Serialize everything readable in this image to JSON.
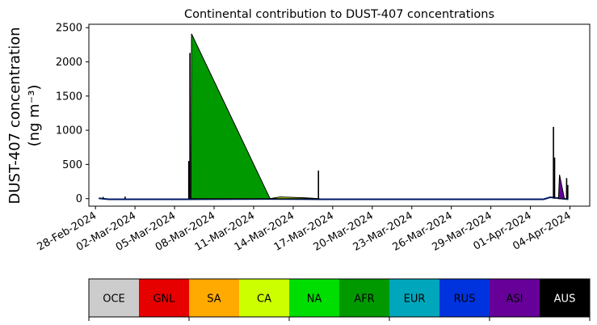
{
  "chart_data": {
    "type": "area",
    "title": "Continental contribution to DUST-407 concentrations",
    "ylabel_line1": "DUST-407 concentration",
    "ylabel_line2": "(ng m⁻³)",
    "xlabel": "",
    "ylim": [
      -110,
      2550
    ],
    "xlim": [
      "2024-02-27T12:00",
      "2024-04-05T12:00"
    ],
    "grid": false,
    "y_ticks": [
      0,
      500,
      1000,
      1500,
      2000,
      2500
    ],
    "x_ticks": [
      {
        "date": "2024-02-28",
        "label": "28-Feb-2024"
      },
      {
        "date": "2024-03-02",
        "label": "02-Mar-2024"
      },
      {
        "date": "2024-03-05",
        "label": "05-Mar-2024"
      },
      {
        "date": "2024-03-08",
        "label": "08-Mar-2024"
      },
      {
        "date": "2024-03-11",
        "label": "11-Mar-2024"
      },
      {
        "date": "2024-03-14",
        "label": "14-Mar-2024"
      },
      {
        "date": "2024-03-17",
        "label": "17-Mar-2024"
      },
      {
        "date": "2024-03-20",
        "label": "20-Mar-2024"
      },
      {
        "date": "2024-03-23",
        "label": "23-Mar-2024"
      },
      {
        "date": "2024-03-26",
        "label": "26-Mar-2024"
      },
      {
        "date": "2024-03-29",
        "label": "29-Mar-2024"
      },
      {
        "date": "2024-04-01",
        "label": "01-Apr-2024"
      },
      {
        "date": "2024-04-04",
        "label": "04-Apr-2024"
      }
    ],
    "legend": [
      {
        "label": "OCE",
        "color": "#cccccc",
        "text_color": "#000000"
      },
      {
        "label": "GNL",
        "color": "#e60000",
        "text_color": "#000000"
      },
      {
        "label": "SA",
        "color": "#ffaa00",
        "text_color": "#000000"
      },
      {
        "label": "CA",
        "color": "#ccff00",
        "text_color": "#000000"
      },
      {
        "label": "NA",
        "color": "#00dd00",
        "text_color": "#000000"
      },
      {
        "label": "AFR",
        "color": "#009900",
        "text_color": "#000000"
      },
      {
        "label": "EUR",
        "color": "#00a6bb",
        "text_color": "#000000"
      },
      {
        "label": "RUS",
        "color": "#0033dd",
        "text_color": "#000000"
      },
      {
        "label": "ASI",
        "color": "#660099",
        "text_color": "#000000"
      },
      {
        "label": "AUS",
        "color": "#000000",
        "text_color": "#ffffff"
      }
    ],
    "areas": [
      {
        "region": "AFR",
        "color": "#009900",
        "points": [
          [
            "2024-03-06T06:00",
            0
          ],
          [
            "2024-03-06T07:00",
            2410
          ],
          [
            "2024-03-12T06:00",
            0
          ]
        ]
      },
      {
        "region": "CA",
        "color": "#ccff00",
        "points": [
          [
            "2024-03-12T06:00",
            0
          ],
          [
            "2024-03-13T00:00",
            25
          ],
          [
            "2024-03-15T00:00",
            10
          ],
          [
            "2024-03-16T00:00",
            0
          ]
        ]
      },
      {
        "region": "ASI",
        "color": "#660099",
        "points": [
          [
            "2024-04-03T03:00",
            0
          ],
          [
            "2024-04-03T05:00",
            350
          ],
          [
            "2024-04-03T14:00",
            0
          ]
        ]
      }
    ],
    "spikes": [
      {
        "date": "2024-02-28T14:00",
        "value": 25
      },
      {
        "date": "2024-03-01T06:00",
        "value": 30
      },
      {
        "date": "2024-03-06T02:00",
        "value": 550
      },
      {
        "date": "2024-03-06T04:00",
        "value": 2130
      },
      {
        "date": "2024-03-15T22:00",
        "value": 410
      },
      {
        "date": "2024-04-02T18:00",
        "value": 1050
      },
      {
        "date": "2024-04-02T20:00",
        "value": 600
      },
      {
        "date": "2024-04-03T18:00",
        "value": 300
      },
      {
        "date": "2024-04-03T20:00",
        "value": 200
      }
    ],
    "baseline": [
      [
        "2024-02-28T06:00",
        5
      ],
      [
        "2024-02-29T00:00",
        -10
      ],
      [
        "2024-03-06T00:00",
        -10
      ],
      [
        "2024-03-12T06:00",
        -5
      ],
      [
        "2024-03-16T00:00",
        -10
      ],
      [
        "2024-04-02T00:00",
        -10
      ],
      [
        "2024-04-02T12:00",
        20
      ],
      [
        "2024-04-03T21:00",
        -10
      ]
    ]
  }
}
